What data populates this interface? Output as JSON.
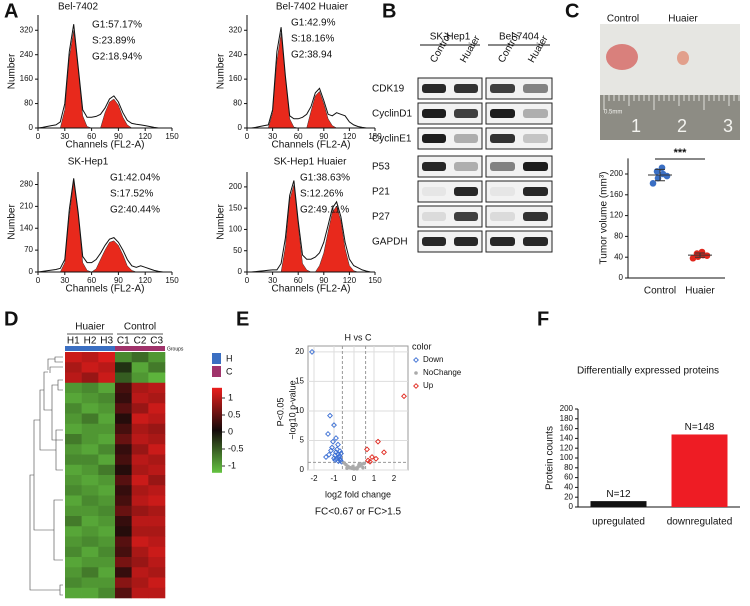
{
  "panel_labels": [
    "A",
    "B",
    "C",
    "D",
    "E",
    "F"
  ],
  "blot": {
    "cell_lines": [
      {
        "name": "SK-Hep1",
        "columns": [
          "Control",
          "Huaier"
        ]
      },
      {
        "name": "Bel-7404",
        "columns": [
          "Control",
          "Huaier"
        ]
      }
    ],
    "proteins": [
      "CDK19",
      "CyclinD1",
      "CyclinE1",
      "P53",
      "P21",
      "P27",
      "GAPDH"
    ]
  },
  "photo": {
    "labels": [
      "Control",
      "Huaier"
    ],
    "ruler": [
      "1",
      "2",
      "3"
    ],
    "scale": "0.5mm"
  },
  "chart_data": [
    {
      "type": "flow",
      "title": "Bel-7402",
      "annotations": [
        "G1:57.17%",
        "S:23.89%",
        "G2:18.94%"
      ],
      "x_label": "Channels (FL2-A)",
      "y_label": "Number",
      "x": [
        0,
        5,
        10,
        15,
        20,
        25,
        30,
        35,
        40,
        45,
        50,
        55,
        60,
        65,
        70,
        75,
        80,
        85,
        90,
        95,
        100,
        105,
        110,
        115,
        120,
        125,
        130,
        135,
        140,
        145,
        150
      ],
      "series": [
        {
          "color": "#e8291c",
          "area": true,
          "values": [
            0,
            0,
            0,
            0,
            0,
            0,
            60,
            230,
            320,
            190,
            40,
            5,
            0,
            0,
            0,
            50,
            85,
            95,
            75,
            35,
            10,
            0,
            0,
            0,
            0,
            0,
            0,
            0,
            0,
            0,
            0
          ]
        },
        {
          "color": "#111111",
          "values": [
            0,
            2,
            5,
            8,
            10,
            20,
            80,
            250,
            340,
            200,
            60,
            35,
            35,
            38,
            45,
            65,
            95,
            105,
            85,
            50,
            25,
            15,
            12,
            10,
            8,
            5,
            2,
            0,
            0,
            0,
            0
          ]
        }
      ],
      "xlim": [
        0,
        150
      ],
      "ylim": [
        0,
        370
      ],
      "xticks": [
        0,
        30,
        60,
        90,
        120,
        150
      ],
      "yticks": [
        0,
        80,
        160,
        240,
        320
      ]
    },
    {
      "type": "flow",
      "title": "Bel-7402 Huaier",
      "annotations": [
        "G1:42.9%",
        "S:18.16%",
        "G2:38.94"
      ],
      "x_label": "Channels (FL2-A)",
      "y_label": "Number",
      "x": [
        0,
        5,
        10,
        15,
        20,
        25,
        30,
        35,
        40,
        45,
        50,
        55,
        60,
        65,
        70,
        75,
        80,
        85,
        90,
        95,
        100,
        105,
        110,
        115,
        120,
        125,
        130,
        135,
        140,
        145,
        150
      ],
      "series": [
        {
          "color": "#e8291c",
          "area": true,
          "values": [
            0,
            0,
            0,
            0,
            0,
            0,
            50,
            220,
            310,
            160,
            30,
            3,
            0,
            0,
            0,
            55,
            105,
            120,
            80,
            30,
            8,
            0,
            0,
            0,
            0,
            0,
            0,
            0,
            0,
            0,
            0
          ]
        },
        {
          "color": "#111111",
          "values": [
            0,
            0,
            2,
            5,
            8,
            10,
            60,
            250,
            330,
            170,
            40,
            30,
            30,
            35,
            45,
            70,
            115,
            130,
            90,
            45,
            40,
            50,
            45,
            40,
            20,
            10,
            5,
            2,
            0,
            0,
            0
          ]
        }
      ],
      "xlim": [
        0,
        150
      ],
      "ylim": [
        0,
        370
      ],
      "xticks": [
        0,
        30,
        60,
        90,
        120,
        150
      ],
      "yticks": [
        0,
        80,
        160,
        240,
        320
      ]
    },
    {
      "type": "flow",
      "title": "SK-Hep1",
      "annotations": [
        "G1:42.04%",
        "S:17.52%",
        "G2:40.44%"
      ],
      "x_label": "Channels (FL2-A)",
      "y_label": "Number",
      "x": [
        0,
        5,
        10,
        15,
        20,
        25,
        30,
        35,
        40,
        45,
        50,
        55,
        60,
        65,
        70,
        75,
        80,
        85,
        90,
        95,
        100,
        105,
        110,
        115,
        120,
        125,
        130,
        135,
        140,
        145,
        150
      ],
      "series": [
        {
          "color": "#e8291c",
          "area": true,
          "values": [
            0,
            0,
            0,
            0,
            0,
            0,
            30,
            180,
            290,
            180,
            30,
            5,
            0,
            10,
            40,
            70,
            95,
            100,
            85,
            55,
            20,
            5,
            0,
            0,
            0,
            0,
            0,
            0,
            0,
            0,
            0
          ]
        },
        {
          "color": "#111111",
          "values": [
            0,
            2,
            4,
            6,
            8,
            12,
            40,
            200,
            300,
            190,
            50,
            30,
            30,
            40,
            60,
            85,
            105,
            110,
            95,
            70,
            40,
            20,
            15,
            20,
            15,
            10,
            5,
            2,
            0,
            0,
            0
          ]
        }
      ],
      "xlim": [
        0,
        150
      ],
      "ylim": [
        0,
        320
      ],
      "xticks": [
        0,
        30,
        60,
        90,
        120,
        150
      ],
      "yticks": [
        0,
        70,
        140,
        210,
        280
      ]
    },
    {
      "type": "flow",
      "title": "SK-Hep1 Huaier",
      "annotations": [
        "G1:38.63%",
        "S:12.26%",
        "G2:49.11%"
      ],
      "x_label": "Channels (FL2-A)",
      "y_label": "Number",
      "x": [
        0,
        5,
        10,
        15,
        20,
        25,
        30,
        35,
        40,
        45,
        50,
        55,
        60,
        65,
        70,
        75,
        80,
        85,
        90,
        95,
        100,
        105,
        110,
        115,
        120,
        125,
        130,
        135,
        140,
        145,
        150
      ],
      "series": [
        {
          "color": "#e8291c",
          "area": true,
          "values": [
            0,
            0,
            0,
            0,
            0,
            0,
            0,
            0,
            0,
            60,
            170,
            205,
            110,
            20,
            5,
            0,
            0,
            15,
            45,
            95,
            140,
            155,
            120,
            55,
            15,
            3,
            0,
            0,
            0,
            0,
            0
          ]
        },
        {
          "color": "#111111",
          "values": [
            0,
            0,
            1,
            2,
            3,
            4,
            5,
            5,
            20,
            80,
            180,
            215,
            120,
            40,
            30,
            30,
            35,
            45,
            70,
            110,
            150,
            165,
            130,
            70,
            30,
            15,
            10,
            5,
            2,
            0,
            0
          ]
        }
      ],
      "xlim": [
        0,
        150
      ],
      "ylim": [
        0,
        235
      ],
      "xticks": [
        0,
        30,
        60,
        90,
        120,
        150
      ],
      "yticks": [
        0,
        50,
        100,
        150,
        200
      ]
    },
    {
      "type": "dotplot",
      "y_label": "Tumor volume (mm³)",
      "annotation": "***",
      "series": [
        {
          "name": "Control",
          "color": "#3a6fc4",
          "values": [
            182,
            192,
            200,
            205,
            212,
            196
          ],
          "mean": 198,
          "error": 11
        },
        {
          "name": "Huaier",
          "color": "#e0261c",
          "values": [
            38,
            41,
            44,
            47,
            50,
            43
          ],
          "mean": 44,
          "error": 4
        }
      ],
      "ylim": [
        0,
        230
      ],
      "yticks": [
        0,
        40,
        80,
        120,
        160,
        200
      ]
    },
    {
      "type": "volcano",
      "title": "H vs C",
      "x_label": "log2 fold change",
      "y_label": "−log10 p-value",
      "y_note": "P<0.05",
      "x_note": "FC<0.67 or FC>1.5",
      "legend_title": "color",
      "series": [
        {
          "name": "Down",
          "color": "#3b6fd4",
          "x": [
            -2.1,
            -1.2,
            -1.0,
            -0.9,
            -0.8,
            -1.1,
            -0.7,
            -0.65,
            -1.3,
            -0.95,
            -0.85,
            -0.75,
            -1.05,
            -0.7,
            -0.9,
            -0.8,
            -1.4,
            -0.68,
            -1.0,
            -0.78,
            -0.88,
            -1.15,
            -0.72,
            -0.95,
            -1.25,
            -0.62
          ],
          "y": [
            20,
            9.2,
            7.6,
            5.4,
            4.3,
            3.8,
            3.2,
            2.8,
            6.1,
            2.5,
            3.5,
            2.1,
            4.8,
            1.8,
            3.0,
            2.7,
            2.2,
            1.6,
            2.0,
            1.5,
            1.9,
            3.3,
            2.4,
            1.7,
            2.6,
            1.4
          ]
        },
        {
          "name": "NoChange",
          "color": "#aaaaaa",
          "x": [
            -0.5,
            -0.4,
            -0.3,
            -0.2,
            -0.1,
            0,
            0.1,
            0.2,
            0.3,
            0.4,
            0.5,
            -0.35,
            0.15,
            -0.05,
            0.25,
            0.45
          ],
          "y": [
            1.2,
            0.9,
            0.6,
            0.4,
            0.3,
            0.2,
            0.3,
            0.5,
            0.7,
            1.0,
            1.1,
            0.3,
            0.2,
            0.6,
            0.9,
            0.4
          ]
        },
        {
          "name": "Up",
          "color": "#e0261c",
          "x": [
            0.7,
            0.9,
            1.2,
            1.5,
            0.8,
            1.1,
            2.5,
            0.65
          ],
          "y": [
            1.6,
            2.2,
            4.8,
            3.0,
            1.4,
            1.9,
            12.5,
            3.5
          ]
        }
      ],
      "thresholds": {
        "x": [
          -0.58,
          0.58
        ],
        "y": [
          1.3
        ]
      },
      "xlim": [
        -2.3,
        2.7
      ],
      "ylim": [
        0,
        21
      ],
      "xticks": [
        -2,
        -1,
        0,
        1,
        2
      ],
      "yticks": [
        0,
        5,
        10,
        15,
        20
      ],
      "grid": true
    },
    {
      "type": "bar",
      "title": "Differentially expressed proteins",
      "y_label": "Protein counts",
      "categories": [
        "upregulated",
        "downregulated"
      ],
      "values": [
        12,
        148
      ],
      "value_labels": [
        "N=12",
        "N=148"
      ],
      "colors": [
        "#111111",
        "#ee1c24"
      ],
      "ylim": [
        0,
        200
      ],
      "yticks": [
        0,
        20,
        40,
        60,
        80,
        100,
        120,
        140,
        160,
        180,
        200
      ]
    },
    {
      "type": "heatmap",
      "groups_title": "Groups",
      "groups": [
        {
          "name": "Huaier",
          "key": "H",
          "color": "#3b6fc2",
          "columns": [
            "H1",
            "H2",
            "H3"
          ]
        },
        {
          "name": "Control",
          "key": "C",
          "color": "#a0336b",
          "columns": [
            "C1",
            "C2",
            "C3"
          ]
        }
      ],
      "zlim": [
        -1.2,
        1.3
      ],
      "colorbar_ticks": [
        1,
        0.5,
        0,
        -0.5,
        -1
      ],
      "values": [
        [
          1.1,
          1.0,
          1.2,
          -0.8,
          -0.6,
          -0.9
        ],
        [
          0.9,
          1.1,
          1.0,
          -0.2,
          -1.0,
          -0.7
        ],
        [
          1.0,
          0.8,
          1.1,
          -0.5,
          -0.9,
          -1.1
        ],
        [
          -0.9,
          -0.8,
          -1.0,
          0.3,
          0.9,
          1.0
        ],
        [
          -1.0,
          -0.9,
          -0.8,
          0.2,
          1.0,
          0.9
        ],
        [
          -0.8,
          -1.0,
          -0.9,
          0.4,
          0.8,
          1.1
        ],
        [
          -0.9,
          -0.7,
          -1.0,
          0.1,
          1.1,
          1.0
        ],
        [
          -1.0,
          -0.9,
          -0.9,
          0.3,
          0.9,
          0.8
        ],
        [
          -0.7,
          -0.9,
          -1.0,
          0.5,
          1.0,
          0.9
        ],
        [
          -0.9,
          -1.0,
          -0.8,
          0.2,
          0.8,
          1.1
        ],
        [
          -0.8,
          -0.8,
          -1.0,
          0.3,
          1.0,
          0.9
        ],
        [
          -1.0,
          -0.9,
          -0.7,
          0.1,
          0.9,
          1.0
        ],
        [
          -0.9,
          -1.0,
          -0.9,
          0.4,
          1.1,
          0.8
        ],
        [
          -0.8,
          -0.9,
          -1.0,
          0.2,
          0.9,
          1.0
        ],
        [
          -1.0,
          -0.8,
          -0.9,
          0.3,
          1.0,
          1.1
        ],
        [
          -0.9,
          -0.9,
          -0.8,
          0.5,
          0.8,
          0.9
        ],
        [
          -0.7,
          -1.0,
          -0.9,
          0.2,
          1.0,
          1.0
        ],
        [
          -1.0,
          -0.9,
          -1.0,
          0.1,
          0.9,
          0.9
        ],
        [
          -0.9,
          -0.8,
          -0.9,
          0.4,
          1.1,
          1.0
        ],
        [
          -0.8,
          -1.0,
          -0.8,
          0.3,
          0.9,
          1.1
        ],
        [
          -1.0,
          -0.9,
          -0.9,
          0.6,
          0.8,
          1.0
        ],
        [
          -0.9,
          -0.7,
          -1.0,
          0.2,
          1.0,
          0.9
        ],
        [
          -0.8,
          -0.9,
          -0.9,
          0.7,
          0.9,
          1.1
        ],
        [
          -1.0,
          -1.0,
          -0.8,
          0.4,
          1.0,
          1.0
        ]
      ]
    }
  ]
}
